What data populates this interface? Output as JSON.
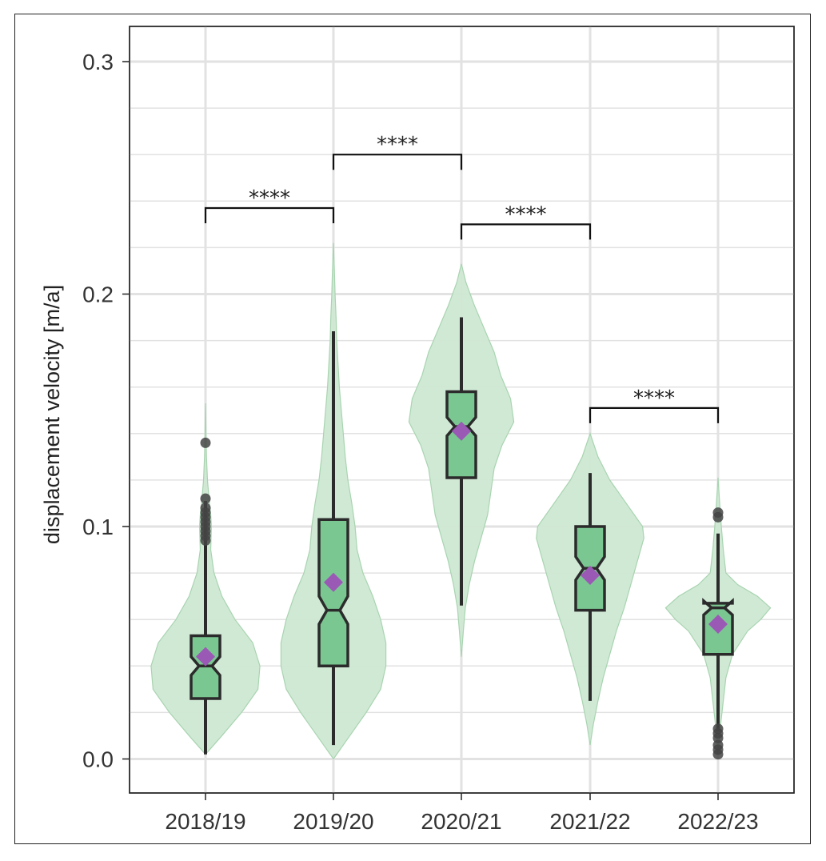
{
  "chart_data": {
    "type": "violin",
    "ylabel": "displacement velocity [m/a]",
    "xlabel": "",
    "ylim": [
      -0.015,
      0.315
    ],
    "yticks": [
      "0.0",
      "0.1",
      "0.2",
      "0.3"
    ],
    "grid": true,
    "categories": [
      "2018/19",
      "2019/20",
      "2020/21",
      "2021/22",
      "2022/23"
    ],
    "colors": {
      "violin_fill": "#cde8d3",
      "violin_stroke": "#a8d4b0",
      "box_fill": "#7bc792",
      "box_stroke": "#2b2b2b",
      "mean_marker": "#9b59b6",
      "outlier": "#444444",
      "grid": "#e2e2e2"
    },
    "groups": [
      {
        "label": "2018/19",
        "box": {
          "whisker_low": 0.002,
          "q1": 0.026,
          "median": 0.04,
          "q3": 0.053,
          "whisker_high": 0.111
        },
        "mean": 0.044,
        "notch": [
          0.036,
          0.044
        ],
        "outliers": [
          0.136,
          0.112,
          0.108,
          0.106,
          0.104,
          0.102,
          0.1,
          0.098,
          0.096,
          0.094
        ],
        "violin": [
          [
            0.002,
            0.0
          ],
          [
            0.01,
            0.25
          ],
          [
            0.02,
            0.55
          ],
          [
            0.03,
            0.8
          ],
          [
            0.04,
            0.83
          ],
          [
            0.05,
            0.72
          ],
          [
            0.06,
            0.45
          ],
          [
            0.07,
            0.25
          ],
          [
            0.08,
            0.13
          ],
          [
            0.09,
            0.08
          ],
          [
            0.1,
            0.09
          ],
          [
            0.105,
            0.08
          ],
          [
            0.11,
            0.06
          ],
          [
            0.12,
            0.03
          ],
          [
            0.13,
            0.015
          ],
          [
            0.14,
            0.008
          ],
          [
            0.153,
            0.0
          ]
        ]
      },
      {
        "label": "2019/20",
        "box": {
          "whisker_low": 0.006,
          "q1": 0.04,
          "median": 0.064,
          "q3": 0.103,
          "whisker_high": 0.184
        },
        "mean": 0.076,
        "notch": [
          0.058,
          0.07
        ],
        "outliers": [],
        "violin": [
          [
            0.0,
            0.0
          ],
          [
            0.01,
            0.25
          ],
          [
            0.02,
            0.5
          ],
          [
            0.03,
            0.72
          ],
          [
            0.04,
            0.8
          ],
          [
            0.05,
            0.8
          ],
          [
            0.06,
            0.72
          ],
          [
            0.07,
            0.6
          ],
          [
            0.08,
            0.45
          ],
          [
            0.09,
            0.36
          ],
          [
            0.1,
            0.33
          ],
          [
            0.11,
            0.28
          ],
          [
            0.12,
            0.22
          ],
          [
            0.13,
            0.18
          ],
          [
            0.14,
            0.15
          ],
          [
            0.15,
            0.12
          ],
          [
            0.16,
            0.09
          ],
          [
            0.17,
            0.07
          ],
          [
            0.18,
            0.05
          ],
          [
            0.19,
            0.04
          ],
          [
            0.2,
            0.025
          ],
          [
            0.21,
            0.015
          ],
          [
            0.222,
            0.0
          ]
        ]
      },
      {
        "label": "2020/21",
        "box": {
          "whisker_low": 0.066,
          "q1": 0.121,
          "median": 0.143,
          "q3": 0.158,
          "whisker_high": 0.19
        },
        "mean": 0.141,
        "notch": [
          0.139,
          0.147
        ],
        "outliers": [],
        "violin": [
          [
            0.044,
            0.0
          ],
          [
            0.055,
            0.03
          ],
          [
            0.065,
            0.06
          ],
          [
            0.075,
            0.12
          ],
          [
            0.085,
            0.2
          ],
          [
            0.095,
            0.3
          ],
          [
            0.105,
            0.4
          ],
          [
            0.115,
            0.45
          ],
          [
            0.125,
            0.5
          ],
          [
            0.135,
            0.62
          ],
          [
            0.145,
            0.8
          ],
          [
            0.155,
            0.75
          ],
          [
            0.165,
            0.6
          ],
          [
            0.175,
            0.5
          ],
          [
            0.185,
            0.35
          ],
          [
            0.195,
            0.2
          ],
          [
            0.205,
            0.07
          ],
          [
            0.213,
            0.0
          ]
        ]
      },
      {
        "label": "2021/22",
        "box": {
          "whisker_low": 0.025,
          "q1": 0.064,
          "median": 0.082,
          "q3": 0.1,
          "whisker_high": 0.123
        },
        "mean": 0.079,
        "notch": [
          0.077,
          0.087
        ],
        "outliers": [],
        "violin": [
          [
            0.006,
            0.0
          ],
          [
            0.015,
            0.05
          ],
          [
            0.025,
            0.12
          ],
          [
            0.035,
            0.2
          ],
          [
            0.045,
            0.3
          ],
          [
            0.055,
            0.4
          ],
          [
            0.065,
            0.52
          ],
          [
            0.075,
            0.62
          ],
          [
            0.085,
            0.72
          ],
          [
            0.095,
            0.82
          ],
          [
            0.1,
            0.8
          ],
          [
            0.11,
            0.55
          ],
          [
            0.12,
            0.3
          ],
          [
            0.13,
            0.12
          ],
          [
            0.14,
            0.0
          ]
        ]
      },
      {
        "label": "2022/23",
        "box": {
          "whisker_low": 0.012,
          "q1": 0.045,
          "median": 0.065,
          "q3": 0.067,
          "whisker_high": 0.097
        },
        "mean": 0.058,
        "notch": [
          0.062,
          0.068
        ],
        "outliers": [
          0.106,
          0.104,
          0.013,
          0.011,
          0.009,
          0.006,
          0.004,
          0.002
        ],
        "violin": [
          [
            0.002,
            0.0
          ],
          [
            0.015,
            0.04
          ],
          [
            0.025,
            0.08
          ],
          [
            0.035,
            0.12
          ],
          [
            0.045,
            0.22
          ],
          [
            0.055,
            0.45
          ],
          [
            0.06,
            0.65
          ],
          [
            0.065,
            0.8
          ],
          [
            0.07,
            0.6
          ],
          [
            0.075,
            0.3
          ],
          [
            0.08,
            0.12
          ],
          [
            0.09,
            0.08
          ],
          [
            0.1,
            0.05
          ],
          [
            0.11,
            0.025
          ],
          [
            0.121,
            0.0
          ]
        ]
      }
    ],
    "significance": [
      {
        "from": 0,
        "to": 1,
        "y": 0.237,
        "label": "****"
      },
      {
        "from": 1,
        "to": 2,
        "y": 0.26,
        "label": "****"
      },
      {
        "from": 2,
        "to": 3,
        "y": 0.23,
        "label": "****"
      },
      {
        "from": 3,
        "to": 4,
        "y": 0.151,
        "label": "****"
      }
    ]
  }
}
